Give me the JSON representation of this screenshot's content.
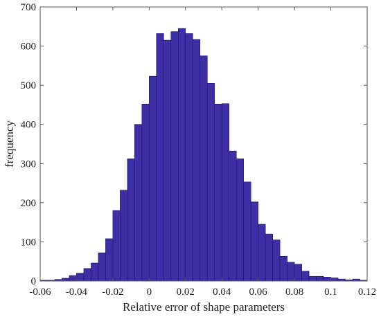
{
  "chart_data": {
    "type": "bar",
    "title": "",
    "xlabel": "Relative error of shape parameters",
    "ylabel": "frequency",
    "xlim": [
      -0.06,
      0.12
    ],
    "ylim": [
      0,
      700
    ],
    "xticks": [
      -0.06,
      -0.04,
      -0.02,
      0,
      0.02,
      0.04,
      0.06,
      0.08,
      0.1,
      0.12
    ],
    "xtick_labels": [
      "-0.06",
      "-0.04",
      "-0.02",
      "0",
      "0.02",
      "0.04",
      "0.06",
      "0.08",
      "0.1",
      "0.12"
    ],
    "yticks": [
      0,
      100,
      200,
      300,
      400,
      500,
      600,
      700
    ],
    "ytick_labels": [
      "0",
      "100",
      "200",
      "300",
      "400",
      "500",
      "600",
      "700"
    ],
    "bin_width": 0.004,
    "bin_left_edges": [
      -0.06,
      -0.056,
      -0.052,
      -0.048,
      -0.044,
      -0.04,
      -0.036,
      -0.032,
      -0.028,
      -0.024,
      -0.02,
      -0.016,
      -0.012,
      -0.008,
      -0.004,
      0,
      0.004,
      0.008,
      0.012,
      0.016,
      0.02,
      0.024,
      0.028,
      0.032,
      0.036,
      0.04,
      0.044,
      0.048,
      0.052,
      0.056,
      0.06,
      0.064,
      0.068,
      0.072,
      0.076,
      0.08,
      0.084,
      0.088,
      0.092,
      0.096,
      0.1,
      0.104,
      0.108,
      0.112,
      0.116
    ],
    "values": [
      2,
      2,
      4,
      7,
      14,
      20,
      32,
      46,
      72,
      108,
      180,
      232,
      312,
      400,
      452,
      523,
      632,
      615,
      637,
      645,
      632,
      617,
      575,
      505,
      452,
      453,
      332,
      312,
      253,
      202,
      145,
      120,
      105,
      63,
      48,
      43,
      25,
      12,
      12,
      10,
      8,
      5,
      3,
      5,
      2
    ],
    "bar_color": "#3f2fa6",
    "bar_edge_color": "#1e1466",
    "grid": false
  }
}
